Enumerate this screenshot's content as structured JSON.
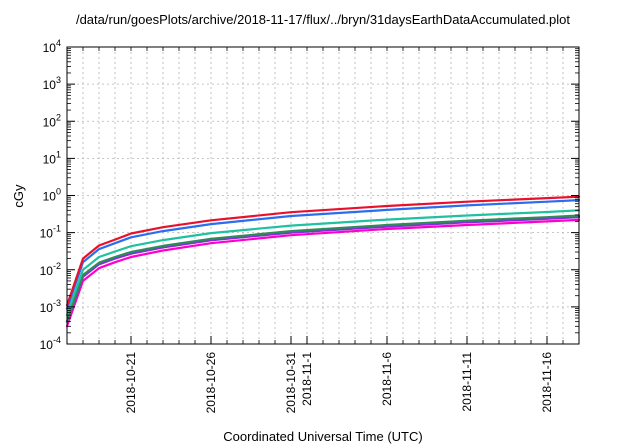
{
  "title": "/data/run/goesPlots/archive/2018-11-17/flux/../bryn/31daysEarthDataAccumulated.plot",
  "chart_data": {
    "type": "line",
    "title": "/data/run/goesPlots/archive/2018-11-17/flux/../bryn/31daysEarthDataAccumulated.plot",
    "xlabel": "Coordinated Universal Time (UTC)",
    "ylabel": "cGy",
    "y_scale": "log",
    "ylim": [
      0.0001,
      10000
    ],
    "xlim": [
      "2018-10-17",
      "2018-11-18"
    ],
    "grid": true,
    "y_ticks": [
      {
        "value": 0.0001,
        "base": "10",
        "exp": "-4"
      },
      {
        "value": 0.001,
        "base": "10",
        "exp": "-3"
      },
      {
        "value": 0.01,
        "base": "10",
        "exp": "-2"
      },
      {
        "value": 0.1,
        "base": "10",
        "exp": "-1"
      },
      {
        "value": 1,
        "base": "10",
        "exp": "0"
      },
      {
        "value": 10,
        "base": "10",
        "exp": "1"
      },
      {
        "value": 100,
        "base": "10",
        "exp": "2"
      },
      {
        "value": 1000,
        "base": "10",
        "exp": "3"
      },
      {
        "value": 10000,
        "base": "10",
        "exp": "4"
      }
    ],
    "x_ticks": [
      {
        "value": "2018-10-21",
        "label": "2018-10-21"
      },
      {
        "value": "2018-10-26",
        "label": "2018-10-26"
      },
      {
        "value": "2018-10-31",
        "label": "2018-10-31"
      },
      {
        "value": "2018-11-01",
        "label": "2018-11-1"
      },
      {
        "value": "2018-11-06",
        "label": "2018-11-6"
      },
      {
        "value": "2018-11-11",
        "label": "2018-11-11"
      },
      {
        "value": "2018-11-16",
        "label": "2018-11-16"
      }
    ],
    "series": [
      {
        "color": "#ff00cc",
        "x": [
          "2018-10-17",
          "2018-10-18",
          "2018-10-19",
          "2018-10-20",
          "2018-10-21",
          "2018-10-23",
          "2018-10-26",
          "2018-10-31",
          "2018-11-06",
          "2018-11-11",
          "2018-11-16",
          "2018-11-18"
        ],
        "values": [
          0.0003,
          0.005,
          0.011,
          0.016,
          0.022,
          0.033,
          0.052,
          0.085,
          0.125,
          0.16,
          0.2,
          0.22
        ]
      },
      {
        "color": "#000000",
        "x": [
          "2018-10-17",
          "2018-10-18",
          "2018-10-19",
          "2018-10-20",
          "2018-10-21",
          "2018-10-23",
          "2018-10-26",
          "2018-10-31",
          "2018-11-06",
          "2018-11-11",
          "2018-11-16",
          "2018-11-18"
        ],
        "values": [
          0.0004,
          0.007,
          0.015,
          0.021,
          0.029,
          0.042,
          0.065,
          0.105,
          0.15,
          0.2,
          0.245,
          0.27
        ]
      },
      {
        "color": "#8a2be2",
        "x": [
          "2018-10-17",
          "2018-10-18",
          "2018-10-19",
          "2018-10-20",
          "2018-10-21",
          "2018-10-23",
          "2018-10-26",
          "2018-10-31",
          "2018-11-06",
          "2018-11-11",
          "2018-11-16",
          "2018-11-18"
        ],
        "values": [
          0.0004,
          0.0065,
          0.014,
          0.02,
          0.027,
          0.04,
          0.062,
          0.1,
          0.145,
          0.19,
          0.235,
          0.26
        ]
      },
      {
        "color": "#2e8b57",
        "x": [
          "2018-10-17",
          "2018-10-18",
          "2018-10-19",
          "2018-10-20",
          "2018-10-21",
          "2018-10-23",
          "2018-10-26",
          "2018-10-31",
          "2018-11-06",
          "2018-11-11",
          "2018-11-16",
          "2018-11-18"
        ],
        "values": [
          0.0004,
          0.0072,
          0.0155,
          0.022,
          0.03,
          0.044,
          0.068,
          0.11,
          0.16,
          0.21,
          0.26,
          0.29
        ]
      },
      {
        "color": "#20c0a0",
        "x": [
          "2018-10-17",
          "2018-10-18",
          "2018-10-19",
          "2018-10-20",
          "2018-10-21",
          "2018-10-23",
          "2018-10-26",
          "2018-10-31",
          "2018-11-06",
          "2018-11-11",
          "2018-11-16",
          "2018-11-18"
        ],
        "values": [
          0.0006,
          0.01,
          0.022,
          0.031,
          0.043,
          0.063,
          0.097,
          0.155,
          0.225,
          0.29,
          0.36,
          0.4
        ]
      },
      {
        "color": "#2a6ef0",
        "x": [
          "2018-10-17",
          "2018-10-18",
          "2018-10-19",
          "2018-10-20",
          "2018-10-21",
          "2018-10-23",
          "2018-10-26",
          "2018-10-31",
          "2018-11-06",
          "2018-11-11",
          "2018-11-16",
          "2018-11-18"
        ],
        "values": [
          0.0009,
          0.016,
          0.036,
          0.052,
          0.075,
          0.11,
          0.17,
          0.28,
          0.41,
          0.54,
          0.68,
          0.75
        ]
      },
      {
        "color": "#e8102a",
        "x": [
          "2018-10-17",
          "2018-10-18",
          "2018-10-19",
          "2018-10-20",
          "2018-10-21",
          "2018-10-23",
          "2018-10-26",
          "2018-10-31",
          "2018-11-06",
          "2018-11-11",
          "2018-11-16",
          "2018-11-18"
        ],
        "values": [
          0.0011,
          0.02,
          0.045,
          0.065,
          0.095,
          0.14,
          0.215,
          0.355,
          0.52,
          0.68,
          0.85,
          0.93
        ]
      }
    ]
  }
}
